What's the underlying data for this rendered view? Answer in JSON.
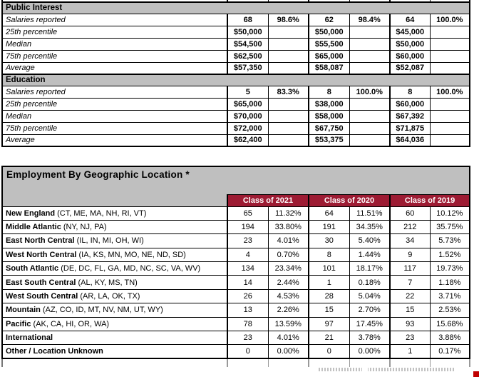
{
  "salary_report": {
    "sections": [
      {
        "header": "Public Interest",
        "rows": [
          {
            "label": "Salaries reported",
            "cells": [
              "68",
              "98.6%",
              "62",
              "98.4%",
              "64",
              "100.0%"
            ]
          },
          {
            "label": "25th percentile",
            "cells": [
              "$50,000",
              "",
              "$50,000",
              "",
              "$45,000",
              ""
            ]
          },
          {
            "label": "Median",
            "cells": [
              "$54,500",
              "",
              "$55,500",
              "",
              "$50,000",
              ""
            ]
          },
          {
            "label": "75th percentile",
            "cells": [
              "$62,500",
              "",
              "$65,000",
              "",
              "$60,000",
              ""
            ]
          },
          {
            "label": "Average",
            "cells": [
              "$57,350",
              "",
              "$58,087",
              "",
              "$52,087",
              ""
            ]
          }
        ]
      },
      {
        "header": "Education",
        "rows": [
          {
            "label": "Salaries reported",
            "cells": [
              "5",
              "83.3%",
              "8",
              "100.0%",
              "8",
              "100.0%"
            ]
          },
          {
            "label": "25th percentile",
            "cells": [
              "$65,000",
              "",
              "$38,000",
              "",
              "$60,000",
              ""
            ]
          },
          {
            "label": "Median",
            "cells": [
              "$70,000",
              "",
              "$58,000",
              "",
              "$67,392",
              ""
            ]
          },
          {
            "label": "75th percentile",
            "cells": [
              "$72,000",
              "",
              "$67,750",
              "",
              "$71,875",
              ""
            ]
          },
          {
            "label": "Average",
            "cells": [
              "$62,400",
              "",
              "$53,375",
              "",
              "$64,036",
              ""
            ]
          }
        ]
      }
    ]
  },
  "geo_report": {
    "title": "Employment By Geographic Location *",
    "column_groups": [
      "Class of 2021",
      "Class of 2020",
      "Class of 2019"
    ],
    "rows": [
      {
        "region": "New England",
        "states": "(CT, ME, MA, NH, RI, VT)",
        "values": [
          "65",
          "11.32%",
          "64",
          "11.51%",
          "60",
          "10.12%"
        ]
      },
      {
        "region": "Middle Atlantic",
        "states": "(NY, NJ, PA)",
        "values": [
          "194",
          "33.80%",
          "191",
          "34.35%",
          "212",
          "35.75%"
        ]
      },
      {
        "region": "East North Central",
        "states": "(IL, IN, MI, OH, WI)",
        "values": [
          "23",
          "4.01%",
          "30",
          "5.40%",
          "34",
          "5.73%"
        ]
      },
      {
        "region": "West North Central",
        "states": "(IA, KS, MN, MO, NE, ND, SD)",
        "values": [
          "4",
          "0.70%",
          "8",
          "1.44%",
          "9",
          "1.52%"
        ]
      },
      {
        "region": "South Atlantic",
        "states": "(DE, DC, FL, GA, MD, NC, SC, VA, WV)",
        "values": [
          "134",
          "23.34%",
          "101",
          "18.17%",
          "117",
          "19.73%"
        ]
      },
      {
        "region": "East South Central",
        "states": "(AL, KY, MS, TN)",
        "values": [
          "14",
          "2.44%",
          "1",
          "0.18%",
          "7",
          "1.18%"
        ]
      },
      {
        "region": "West South Central",
        "states": "(AR, LA, OK, TX)",
        "values": [
          "26",
          "4.53%",
          "28",
          "5.04%",
          "22",
          "3.71%"
        ]
      },
      {
        "region": "Mountain",
        "states": "(AZ, CO, ID, MT, NV, NM, UT, WY)",
        "values": [
          "13",
          "2.26%",
          "15",
          "2.70%",
          "15",
          "2.53%"
        ]
      },
      {
        "region": "Pacific",
        "states": "(AK, CA, HI, OR, WA)",
        "values": [
          "78",
          "13.59%",
          "97",
          "17.45%",
          "93",
          "15.68%"
        ]
      },
      {
        "region": "International",
        "states": "",
        "values": [
          "23",
          "4.01%",
          "21",
          "3.78%",
          "23",
          "3.88%"
        ]
      },
      {
        "region": "Other / Location Unknown",
        "states": "",
        "values": [
          "0",
          "0.00%",
          "0",
          "0.00%",
          "1",
          "0.17%"
        ]
      }
    ]
  },
  "colors": {
    "section_header_bg": "#bfbfbf",
    "class_header_bg": "#9d1b33",
    "class_header_text": "#ffffff",
    "corner_mark": "#c00000"
  }
}
